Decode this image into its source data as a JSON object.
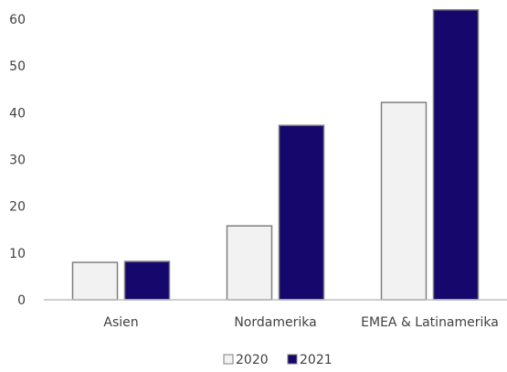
{
  "chart_data": {
    "type": "bar",
    "categories": [
      "Asien",
      "Nordamerika",
      "EMEA & Latinamerika"
    ],
    "series": [
      {
        "name": "2020",
        "values": [
          8,
          15.8,
          42.2
        ],
        "color": "#f2f2f2",
        "stroke": "#7f7f7f"
      },
      {
        "name": "2021",
        "values": [
          8.2,
          37.3,
          62
        ],
        "color": "#15076b",
        "stroke": "#7f7f7f"
      }
    ],
    "y_ticks": [
      "0",
      "10",
      "20",
      "30",
      "40",
      "50",
      "60"
    ],
    "ylim": [
      0,
      60
    ],
    "grid": false,
    "legend_position": "bottom-center",
    "title": "",
    "xlabel": "",
    "ylabel": ""
  }
}
